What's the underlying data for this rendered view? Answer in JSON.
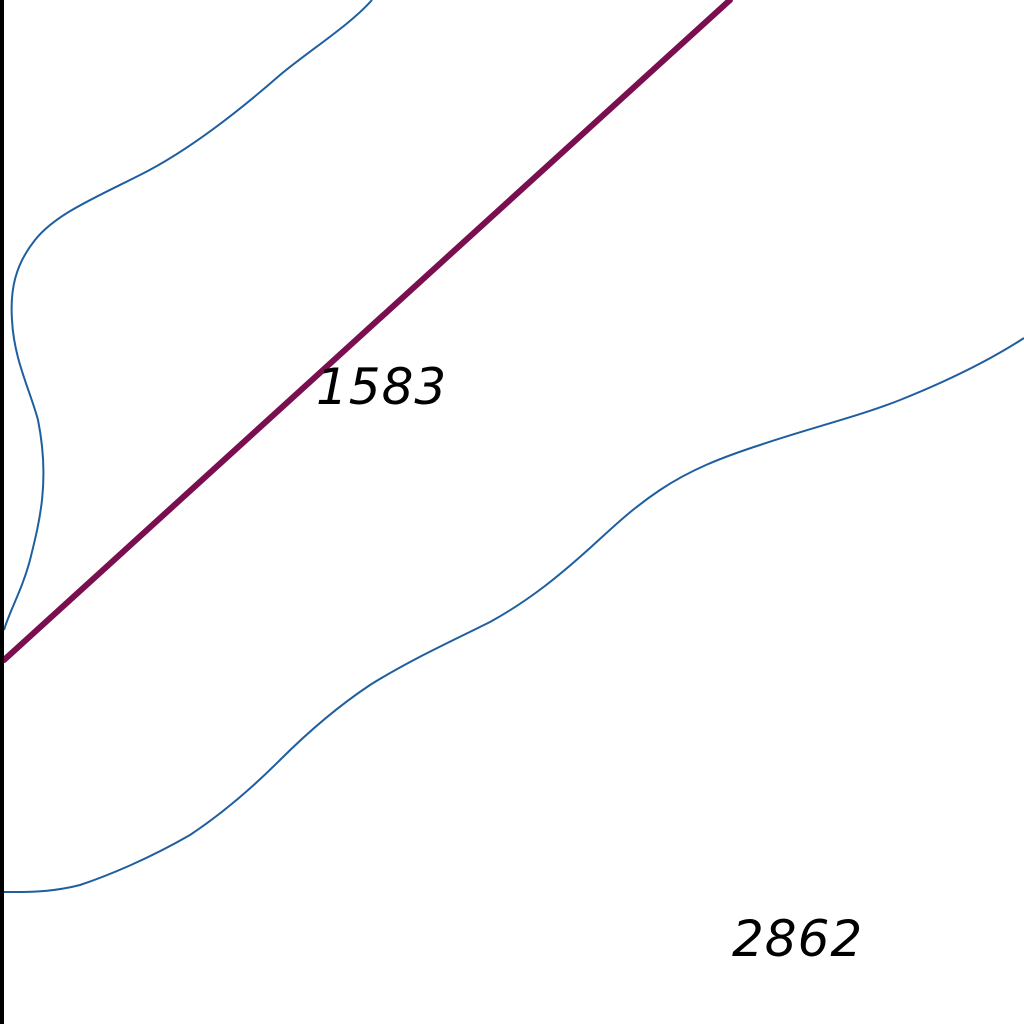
{
  "map": {
    "parcels": [
      {
        "number": "1583"
      },
      {
        "number": "2862"
      }
    ],
    "colors": {
      "background": "#ffffff",
      "contour_line": "#1f5fa0",
      "boundary_line": "#7a0f4f",
      "border": "#000000",
      "label_text": "#000000"
    }
  }
}
